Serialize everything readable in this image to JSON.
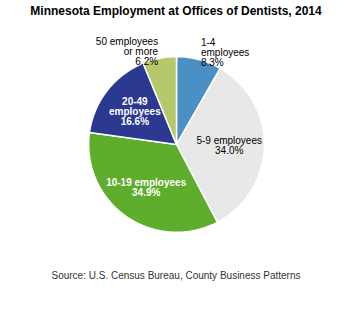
{
  "chart_data": {
    "type": "pie",
    "title": "Minnesota Employment at Offices of Dentists, 2014",
    "caption": "Source: U.S. Census Bureau, County Business Patterns",
    "categories": [
      "1-4\nemployees",
      "5-9 employees",
      "10-19 employees",
      "20-49\nemployees",
      "50 employees\nor more"
    ],
    "values": [
      8.3,
      34.0,
      34.9,
      16.6,
      6.2
    ],
    "value_labels": [
      "8.3%",
      "34.0%",
      "34.9%",
      "16.6%",
      "6.2%"
    ],
    "colors": [
      "#4a90c4",
      "#e8e8e8",
      "#5fad2c",
      "#2b3990",
      "#b5c96a"
    ],
    "data_labels": true
  }
}
